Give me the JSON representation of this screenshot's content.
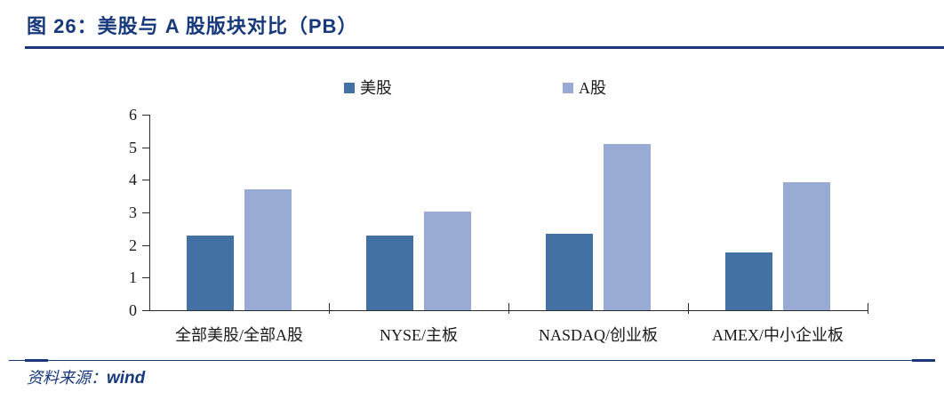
{
  "header": {
    "title": "图 26：美股与 A 股版块对比（PB）"
  },
  "footer": {
    "source_label": "资料来源：",
    "source_value": "wind"
  },
  "colors": {
    "accent_navy": "#17397C",
    "axis": "#2b2b2b",
    "text": "#1a1a1a"
  },
  "chart_data": {
    "type": "bar",
    "title": "",
    "xlabel": "",
    "ylabel": "",
    "categories": [
      "全部美股/全部A股",
      "NYSE/主板",
      "NASDAQ/创业板",
      "AMEX/中小企业板"
    ],
    "series": [
      {
        "name": "美股",
        "color": "#4371A3",
        "values": [
          2.28,
          2.28,
          2.34,
          1.77
        ]
      },
      {
        "name": "A股",
        "color": "#97ABD4",
        "values": [
          3.72,
          3.04,
          5.09,
          3.92
        ]
      }
    ],
    "ylim": [
      0,
      6
    ],
    "ytick_interval": 1,
    "grid": false,
    "legend_position": "top"
  }
}
